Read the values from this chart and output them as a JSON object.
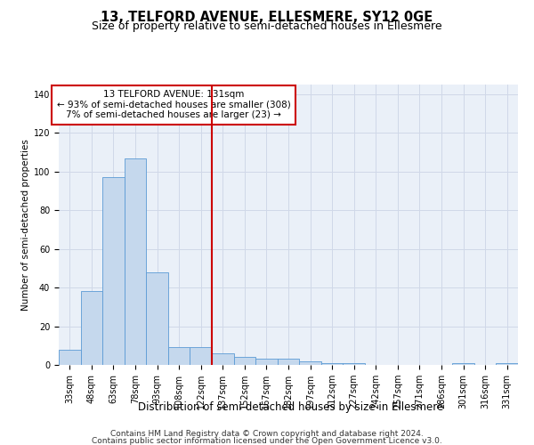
{
  "title1": "13, TELFORD AVENUE, ELLESMERE, SY12 0GE",
  "title2": "Size of property relative to semi-detached houses in Ellesmere",
  "xlabel": "Distribution of semi-detached houses by size in Ellesmere",
  "ylabel": "Number of semi-detached properties",
  "categories": [
    "33sqm",
    "48sqm",
    "63sqm",
    "78sqm",
    "93sqm",
    "108sqm",
    "122sqm",
    "137sqm",
    "152sqm",
    "167sqm",
    "182sqm",
    "197sqm",
    "212sqm",
    "227sqm",
    "242sqm",
    "257sqm",
    "271sqm",
    "286sqm",
    "301sqm",
    "316sqm",
    "331sqm"
  ],
  "values": [
    8,
    38,
    97,
    107,
    48,
    9,
    9,
    6,
    4,
    3,
    3,
    2,
    1,
    1,
    0,
    0,
    0,
    0,
    1,
    0,
    1
  ],
  "bar_color": "#c5d8ed",
  "bar_edge_color": "#5b9bd5",
  "grid_color": "#d0d8e8",
  "bg_color": "#eaf0f8",
  "vline_color": "#cc0000",
  "vline_x_index": 7,
  "annotation_text": "13 TELFORD AVENUE: 131sqm\n← 93% of semi-detached houses are smaller (308)\n7% of semi-detached houses are larger (23) →",
  "annotation_box_color": "#cc0000",
  "annotation_bg": "#ffffff",
  "ylim": [
    0,
    145
  ],
  "yticks": [
    0,
    20,
    40,
    60,
    80,
    100,
    120,
    140
  ],
  "footer1": "Contains HM Land Registry data © Crown copyright and database right 2024.",
  "footer2": "Contains public sector information licensed under the Open Government Licence v3.0.",
  "title1_fontsize": 10.5,
  "title2_fontsize": 9,
  "xlabel_fontsize": 8.5,
  "ylabel_fontsize": 7.5,
  "tick_fontsize": 7,
  "footer_fontsize": 6.5,
  "annotation_fontsize": 7.5
}
